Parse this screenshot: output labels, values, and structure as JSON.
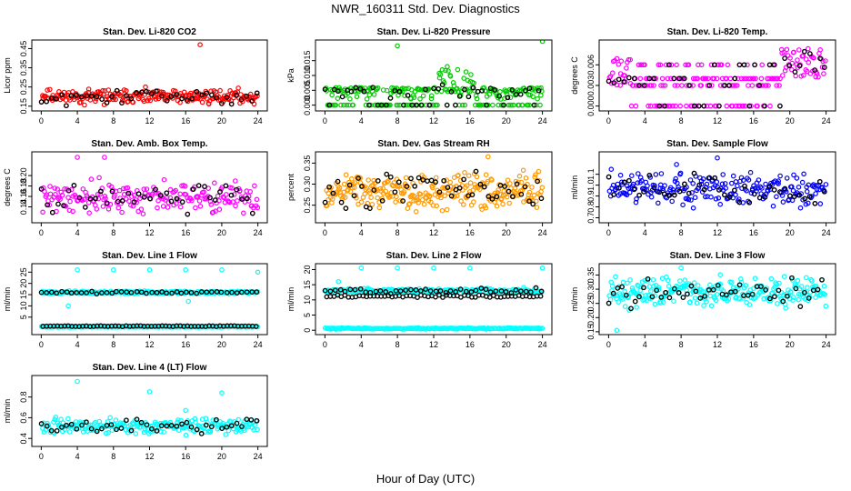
{
  "title": "NWR_160311  Std. Dev. Diagnostics",
  "xlabel": "Hour of Day (UTC)",
  "chart_data": [
    {
      "type": "scatter",
      "title": "Stan. Dev. Li-820 CO2",
      "ylabel": "Licor ppm",
      "color": "#ff0000",
      "xlim": [
        0,
        24
      ],
      "ylim": [
        0.14,
        0.48
      ],
      "xticks": [
        0,
        4,
        8,
        12,
        16,
        20,
        24
      ],
      "xtick_labels": [
        "0",
        "4",
        "8",
        "12",
        "16",
        "20",
        "24"
      ],
      "yticks": [
        0.15,
        0.25,
        0.35,
        0.45
      ],
      "ytick_labels": [
        "0.15",
        "0.25",
        "0.35",
        "0.45"
      ],
      "series": [
        {
          "mean": 0.2,
          "spread": 0.025,
          "pattern": "flat",
          "n": 260,
          "seed": 11
        }
      ],
      "outliers": [
        [
          17.6,
          0.47
        ]
      ]
    },
    {
      "type": "scatter",
      "title": "Stan. Dev. Li-820 Pressure",
      "ylabel": "kPa",
      "color": "#00cc00",
      "xlim": [
        0,
        24
      ],
      "ylim": [
        -0.001,
        0.021
      ],
      "xticks": [
        0,
        4,
        8,
        12,
        16,
        20,
        24
      ],
      "xtick_labels": [
        "0",
        "4",
        "8",
        "12",
        "16",
        "20",
        "24"
      ],
      "yticks": [
        0.0,
        0.005,
        0.01,
        0.015
      ],
      "ytick_labels": [
        "0.000",
        "0.005",
        "0.010",
        "0.015"
      ],
      "series": [
        {
          "mean": 0.005,
          "spread": 0.001,
          "pattern": "pressure",
          "n": 300,
          "seed": 23
        }
      ],
      "outliers": [
        [
          8,
          0.02
        ],
        [
          24,
          0.0215
        ],
        [
          13.5,
          0.013
        ]
      ]
    },
    {
      "type": "scatter",
      "title": "Stan. Dev. Li-820 Temp.",
      "ylabel": "degrees C",
      "color": "#ff00ff",
      "xlim": [
        0,
        24
      ],
      "ylim": [
        -0.0003,
        0.0092
      ],
      "xticks": [
        0,
        4,
        8,
        12,
        16,
        20,
        24
      ],
      "xtick_labels": [
        "0",
        "4",
        "8",
        "12",
        "16",
        "20",
        "24"
      ],
      "yticks": [
        0.0,
        0.003,
        0.006
      ],
      "ytick_labels": [
        "0.000",
        "0.003",
        "0.006"
      ],
      "series": [
        {
          "mean": 0.0045,
          "spread": 0.002,
          "pattern": "bands",
          "n": 260,
          "seed": 37
        }
      ],
      "outliers": []
    },
    {
      "type": "scatter",
      "title": "Stan. Dev. Amb. Box Temp.",
      "ylabel": "degrees C",
      "color": "#ff00ff",
      "xlim": [
        0,
        24
      ],
      "ylim": [
        0.115,
        0.24
      ],
      "xticks": [
        0,
        4,
        8,
        12,
        16,
        20,
        24
      ],
      "xtick_labels": [
        "0",
        "4",
        "8",
        "12",
        "16",
        "20",
        "24"
      ],
      "yticks": [
        0.14,
        0.16,
        0.18,
        0.2
      ],
      "ytick_labels": [
        "0.14",
        "0.16",
        "0.18",
        "0.20"
      ],
      "series": [
        {
          "mean": 0.158,
          "spread": 0.02,
          "pattern": "flat",
          "n": 240,
          "seed": 41
        }
      ],
      "outliers": [
        [
          4,
          0.235
        ],
        [
          7,
          0.235
        ]
      ]
    },
    {
      "type": "scatter",
      "title": "Stan. Dev. Gas Stream RH",
      "ylabel": "percent",
      "color": "#ff9900",
      "xlim": [
        0,
        24
      ],
      "ylim": [
        0.215,
        0.37
      ],
      "xticks": [
        0,
        4,
        8,
        12,
        16,
        20,
        24
      ],
      "xtick_labels": [
        "0",
        "4",
        "8",
        "12",
        "16",
        "20",
        "24"
      ],
      "yticks": [
        0.25,
        0.3,
        0.35
      ],
      "ytick_labels": [
        "0.25",
        "0.30",
        "0.35"
      ],
      "series": [
        {
          "mean": 0.285,
          "spread": 0.03,
          "pattern": "flat",
          "n": 320,
          "seed": 53
        }
      ],
      "outliers": [
        [
          18,
          0.365
        ]
      ]
    },
    {
      "type": "scatter",
      "title": "Stan. Dev. Sample Flow",
      "ylabel": "ml/min",
      "color": "#0000ff",
      "xlim": [
        0,
        24
      ],
      "ylim": [
        0.68,
        1.28
      ],
      "xticks": [
        0,
        4,
        8,
        12,
        16,
        20,
        24
      ],
      "xtick_labels": [
        "0",
        "4",
        "8",
        "12",
        "16",
        "20",
        "24"
      ],
      "yticks": [
        0.7,
        0.8,
        0.9,
        1.0,
        1.1
      ],
      "ytick_labels": [
        "0.7",
        "0.8",
        "0.9",
        "1.0",
        "1.1"
      ],
      "series": [
        {
          "mean": 0.96,
          "spread": 0.1,
          "pattern": "flat",
          "n": 260,
          "seed": 61
        }
      ],
      "outliers": [
        [
          12,
          1.25
        ],
        [
          7.5,
          1.19
        ]
      ]
    },
    {
      "type": "scatter",
      "title": "Stan. Dev. Line 1 Flow",
      "ylabel": "ml/min",
      "color": "#00ffff",
      "xlim": [
        0,
        24
      ],
      "ylim": [
        -1.5,
        27.5
      ],
      "xticks": [
        0,
        4,
        8,
        12,
        16,
        20,
        24
      ],
      "xtick_labels": [
        "0",
        "4",
        "8",
        "12",
        "16",
        "20",
        "24"
      ],
      "yticks": [
        5,
        10,
        15,
        20,
        25
      ],
      "ytick_labels": [
        "5",
        "10",
        "15",
        "20",
        "25"
      ],
      "series": [
        {
          "mean": 16.0,
          "spread": 0.4,
          "pattern": "flat",
          "n": 260,
          "seed": 71
        },
        {
          "mean": 0.7,
          "spread": 0.15,
          "pattern": "flat",
          "n": 220,
          "seed": 73
        }
      ],
      "outliers": [
        [
          4,
          26
        ],
        [
          8,
          26
        ],
        [
          12,
          26
        ],
        [
          16,
          26
        ],
        [
          20,
          26
        ],
        [
          24,
          25
        ],
        [
          16.3,
          12
        ],
        [
          3,
          10
        ]
      ]
    },
    {
      "type": "scatter",
      "title": "Stan. Dev. Line 2 Flow",
      "ylabel": "ml/min",
      "color": "#00ffff",
      "xlim": [
        0,
        24
      ],
      "ylim": [
        -0.5,
        21
      ],
      "xticks": [
        0,
        4,
        8,
        12,
        16,
        20,
        24
      ],
      "xtick_labels": [
        "0",
        "4",
        "8",
        "12",
        "16",
        "20",
        "24"
      ],
      "yticks": [
        0,
        5,
        10,
        15,
        20
      ],
      "ytick_labels": [
        "0",
        "5",
        "10",
        "15",
        "20"
      ],
      "series": [
        {
          "mean": 13.0,
          "spread": 0.6,
          "pattern": "flat",
          "n": 260,
          "seed": 81
        },
        {
          "mean": 0.6,
          "spread": 0.15,
          "pattern": "flat",
          "n": 220,
          "seed": 83
        }
      ],
      "outliers": [
        [
          4,
          20.5
        ],
        [
          8,
          20.5
        ],
        [
          12,
          20.5
        ],
        [
          16,
          20.5
        ],
        [
          24,
          20.5
        ],
        [
          1.5,
          16
        ]
      ]
    },
    {
      "type": "scatter",
      "title": "Stan. Dev. Line 3 Flow",
      "ylabel": "ml/min",
      "color": "#00ffff",
      "xlim": [
        0,
        24
      ],
      "ylim": [
        0.15,
        0.38
      ],
      "xticks": [
        0,
        4,
        8,
        12,
        16,
        20,
        24
      ],
      "xtick_labels": [
        "0",
        "4",
        "8",
        "12",
        "16",
        "20",
        "24"
      ],
      "yticks": [
        0.15,
        0.2,
        0.25,
        0.3,
        0.35
      ],
      "ytick_labels": [
        "0.15",
        "0.20",
        "0.25",
        "0.30",
        "0.35"
      ],
      "series": [
        {
          "mean": 0.29,
          "spread": 0.035,
          "pattern": "flat",
          "n": 300,
          "seed": 91
        }
      ],
      "outliers": [
        [
          8,
          0.375
        ],
        [
          0.9,
          0.155
        ]
      ]
    },
    {
      "type": "scatter",
      "title": "Stan. Dev. Line 4 (LT) Flow",
      "ylabel": "ml/min",
      "color": "#00ffff",
      "xlim": [
        0,
        24
      ],
      "ylim": [
        0.35,
        0.98
      ],
      "xticks": [
        0,
        4,
        8,
        12,
        16,
        20,
        24
      ],
      "xtick_labels": [
        "0",
        "4",
        "8",
        "12",
        "16",
        "20",
        "24"
      ],
      "yticks": [
        0.4,
        0.6,
        0.8
      ],
      "ytick_labels": [
        "0.4",
        "0.6",
        "0.8"
      ],
      "series": [
        {
          "mean": 0.52,
          "spread": 0.05,
          "pattern": "flat",
          "n": 260,
          "seed": 101
        }
      ],
      "outliers": [
        [
          4,
          0.95
        ],
        [
          12,
          0.85
        ],
        [
          20,
          0.84
        ],
        [
          16,
          0.67
        ]
      ]
    }
  ]
}
